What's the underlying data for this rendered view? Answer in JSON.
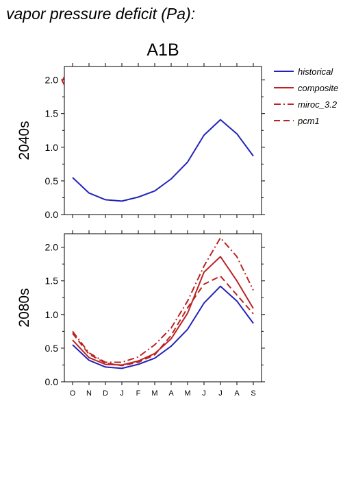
{
  "figure": {
    "title": "vapor pressure deficit (Pa):",
    "scenario": "A1B",
    "legend": [
      {
        "name": "historical",
        "color": "#2222bb",
        "dash": "solid"
      },
      {
        "name": "composite",
        "color": "#bb2222",
        "dash": "solid"
      },
      {
        "name": "miroc_3.2",
        "color": "#bb2222",
        "dash": "dashdot"
      },
      {
        "name": "pcm1",
        "color": "#bb2222",
        "dash": "dashed"
      }
    ]
  },
  "chart_data": [
    {
      "type": "line",
      "row_label": "2040s",
      "categories": [
        "O",
        "N",
        "D",
        "J",
        "F",
        "M",
        "A",
        "M",
        "J",
        "J",
        "A",
        "S"
      ],
      "ylim": [
        0,
        2.2
      ],
      "yticks": [
        "0.0",
        "0.5",
        "1.0",
        "1.5",
        "2.0"
      ],
      "grid": false,
      "series": [
        {
          "name": "historical",
          "values": [
            0.55,
            0.32,
            0.22,
            0.2,
            0.26,
            0.35,
            0.53,
            0.78,
            1.18,
            1.41,
            1.2,
            0.87
          ]
        }
      ]
    },
    {
      "type": "line",
      "row_label": "2080s",
      "categories": [
        "O",
        "N",
        "D",
        "J",
        "F",
        "M",
        "A",
        "M",
        "J",
        "J",
        "A",
        "S"
      ],
      "ylim": [
        0,
        2.2
      ],
      "yticks": [
        "0.0",
        "0.5",
        "1.0",
        "1.5",
        "2.0"
      ],
      "grid": false,
      "series": [
        {
          "name": "historical",
          "values": [
            0.55,
            0.32,
            0.22,
            0.2,
            0.26,
            0.35,
            0.53,
            0.78,
            1.17,
            1.42,
            1.2,
            0.87
          ]
        },
        {
          "name": "composite",
          "values": [
            0.62,
            0.36,
            0.26,
            0.25,
            0.31,
            0.42,
            0.64,
            1.02,
            1.63,
            1.86,
            1.5,
            1.09
          ]
        },
        {
          "name": "miroc_3.2",
          "values": [
            0.75,
            0.43,
            0.29,
            0.29,
            0.37,
            0.55,
            0.8,
            1.2,
            1.72,
            2.14,
            1.86,
            1.36
          ]
        },
        {
          "name": "pcm1",
          "values": [
            0.72,
            0.41,
            0.28,
            0.24,
            0.29,
            0.4,
            0.69,
            1.1,
            1.45,
            1.57,
            1.29,
            1.01
          ]
        }
      ]
    }
  ]
}
